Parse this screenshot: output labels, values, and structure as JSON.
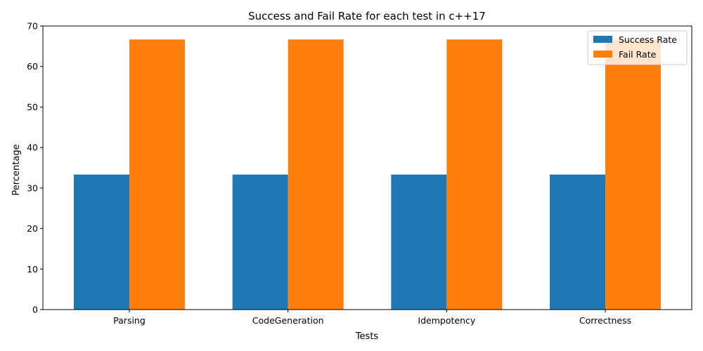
{
  "chart_data": {
    "type": "bar",
    "title": "Success and Fail Rate for each test in c++17",
    "xlabel": "Tests",
    "ylabel": "Percentage",
    "categories": [
      "Parsing",
      "CodeGeneration",
      "Idempotency",
      "Correctness"
    ],
    "series": [
      {
        "name": "Success Rate",
        "color": "#1f77b4",
        "values": [
          33.33,
          33.33,
          33.33,
          33.33
        ]
      },
      {
        "name": "Fail Rate",
        "color": "#ff7f0e",
        "values": [
          66.67,
          66.67,
          66.67,
          66.67
        ]
      }
    ],
    "ylim": [
      0,
      70
    ],
    "yticks": [
      0,
      10,
      20,
      30,
      40,
      50,
      60,
      70
    ],
    "grid": false,
    "legend_position": "top-right"
  }
}
